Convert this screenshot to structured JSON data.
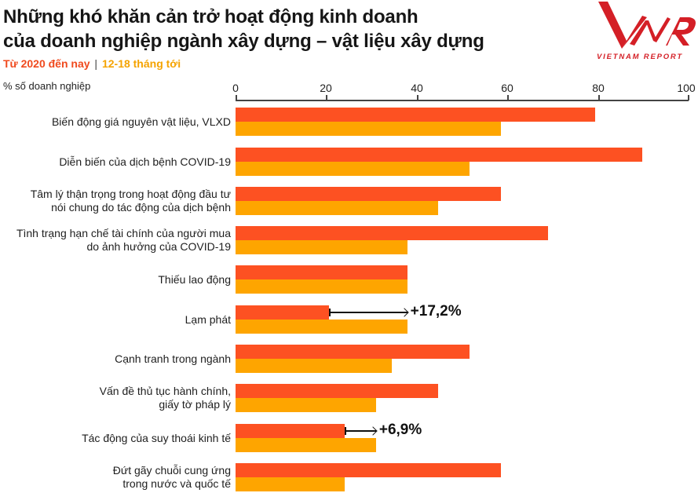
{
  "header": {
    "title_line1": "Những khó khăn cản trở hoạt động kinh doanh",
    "title_line2": "của doanh nghiệp ngành xây dựng – vật liệu xây dựng",
    "legend_series1": "Từ 2020 đến nay",
    "legend_separator": "|",
    "legend_series2": "12-18 tháng tới",
    "unit_label": "% số doanh nghiệp"
  },
  "logo": {
    "mark": "VNR",
    "text": "VIETNAM REPORT",
    "color": "#d41f26"
  },
  "colors": {
    "series1": "#fd5122",
    "series2": "#fea500",
    "legend_series1_text": "#f04a1e",
    "legend_series2_text": "#f5a300"
  },
  "axis": {
    "ticks": [
      "0",
      "20",
      "40",
      "60",
      "80",
      "100"
    ]
  },
  "rows": [
    {
      "label": "Biến động giá nguyên vật liệu, VLXD"
    },
    {
      "label": "Diễn biến của dịch bệnh COVID-19"
    },
    {
      "label": "Tâm lý thận trọng trong hoạt động đầu tư\nnói chung do tác động của dịch bệnh"
    },
    {
      "label": "Tình trạng hạn chế tài chính của người mua\ndo ảnh hưởng của COVID-19"
    },
    {
      "label": "Thiếu lao động"
    },
    {
      "label": "Lạm phát"
    },
    {
      "label": "Cạnh tranh trong ngành"
    },
    {
      "label": "Vấn đề thủ tục hành chính,\ngiấy tờ pháp lý"
    },
    {
      "label": "Tác động của suy thoái kinh tế"
    },
    {
      "label": "Đứt gãy chuỗi cung ứng\ntrong nước và quốc tế"
    }
  ],
  "annotations": [
    {
      "row": 5,
      "text": "+17,2%"
    },
    {
      "row": 8,
      "text": "+6,9%"
    }
  ],
  "chart_data": {
    "type": "bar",
    "orientation": "horizontal",
    "title": "Những khó khăn cản trở hoạt động kinh doanh của doanh nghiệp ngành xây dựng – vật liệu xây dựng",
    "xlabel": "% số doanh nghiệp",
    "ylabel": "",
    "xlim": [
      0,
      100
    ],
    "x_ticks": [
      0,
      20,
      40,
      60,
      80,
      100
    ],
    "grid": false,
    "legend_position": "top-left (under title)",
    "categories": [
      "Biến động giá nguyên vật liệu, VLXD",
      "Diễn biến của dịch bệnh COVID-19",
      "Tâm lý thận trọng trong hoạt động đầu tư nói chung do tác động của dịch bệnh",
      "Tình trạng hạn chế tài chính của người mua do ảnh hưởng của COVID-19",
      "Thiếu lao động",
      "Lạm phát",
      "Cạnh tranh trong ngành",
      "Vấn đề thủ tục hành chính, giấy tờ pháp lý",
      "Tác động của suy thoái kinh tế",
      "Đứt gãy chuỗi cung ứng trong nước và quốc tế"
    ],
    "series": [
      {
        "name": "Từ 2020 đến nay",
        "color": "#fd5122",
        "values": [
          79.3,
          89.7,
          58.6,
          69.0,
          37.9,
          20.7,
          51.7,
          44.8,
          24.1,
          58.6
        ]
      },
      {
        "name": "12-18 tháng tới",
        "color": "#fea500",
        "values": [
          58.6,
          51.7,
          44.8,
          37.9,
          37.9,
          37.9,
          34.5,
          31.0,
          31.0,
          24.1
        ]
      }
    ],
    "annotations": [
      {
        "category": "Lạm phát",
        "text": "+17,2%",
        "from": 20.7,
        "to": 37.9
      },
      {
        "category": "Tác động của suy thoái kinh tế",
        "text": "+6,9%",
        "from": 24.1,
        "to": 31.0
      }
    ]
  }
}
